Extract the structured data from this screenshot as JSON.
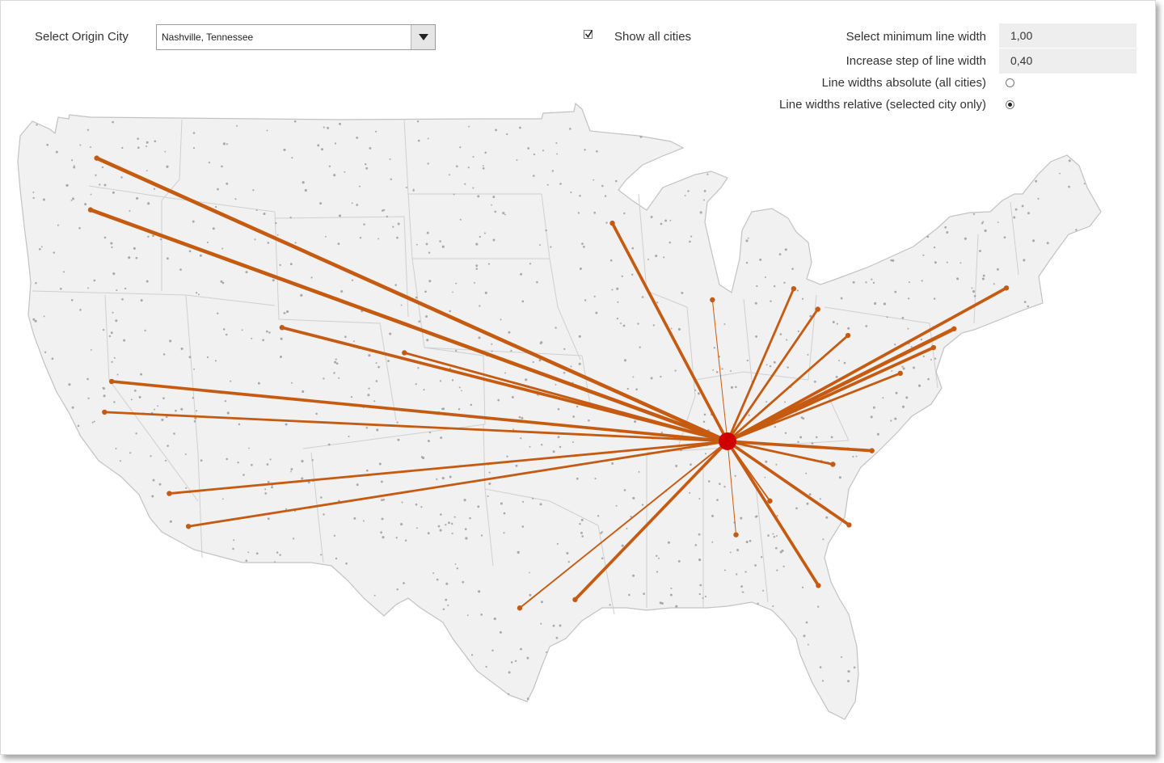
{
  "controls": {
    "origin_label": "Select Origin City",
    "origin_value": "Nashville, Tennessee",
    "show_all_label": "Show all cities",
    "show_all_checked": true,
    "min_width_label": "Select minimum line width",
    "min_width_value": "1,00",
    "step_label": "Increase step of line width",
    "step_value": "0,40",
    "abs_label": "Line widths absolute (all cities)",
    "rel_label": "Line widths relative (selected city only)",
    "selected_mode": "relative"
  },
  "colors": {
    "map_fill": "#f1f1f1",
    "state_border": "#c9c9c9",
    "city_dot": "#a8a8a8",
    "route": "#c55a11",
    "origin": "#d00000"
  },
  "map_data": {
    "origin": {
      "name": "Nashville, Tennessee",
      "lon": -86.78,
      "lat": 36.16
    },
    "routes": [
      {
        "lon": -122.33,
        "lat": 47.61,
        "weight": 5
      },
      {
        "lon": -122.68,
        "lat": 45.52,
        "weight": 5
      },
      {
        "lon": -121.49,
        "lat": 38.58,
        "weight": 4
      },
      {
        "lon": -121.89,
        "lat": 37.34,
        "weight": 3
      },
      {
        "lon": -118.24,
        "lat": 34.05,
        "weight": 3
      },
      {
        "lon": -117.16,
        "lat": 32.72,
        "weight": 3
      },
      {
        "lon": -111.89,
        "lat": 40.76,
        "weight": 4
      },
      {
        "lon": -104.99,
        "lat": 39.74,
        "weight": 3
      },
      {
        "lon": -98.49,
        "lat": 29.42,
        "weight": 2
      },
      {
        "lon": -95.37,
        "lat": 29.76,
        "weight": 4
      },
      {
        "lon": -93.27,
        "lat": 44.98,
        "weight": 4
      },
      {
        "lon": -87.63,
        "lat": 41.88,
        "weight": 1
      },
      {
        "lon": -83.05,
        "lat": 42.33,
        "weight": 3
      },
      {
        "lon": -81.69,
        "lat": 41.5,
        "weight": 3
      },
      {
        "lon": -79.99,
        "lat": 40.44,
        "weight": 3
      },
      {
        "lon": -75.17,
        "lat": 39.95,
        "weight": 4
      },
      {
        "lon": -74.01,
        "lat": 40.71,
        "weight": 5
      },
      {
        "lon": -71.06,
        "lat": 42.36,
        "weight": 4
      },
      {
        "lon": -77.04,
        "lat": 38.91,
        "weight": 3
      },
      {
        "lon": -78.64,
        "lat": 35.78,
        "weight": 4
      },
      {
        "lon": -80.84,
        "lat": 35.23,
        "weight": 3
      },
      {
        "lon": -79.93,
        "lat": 32.78,
        "weight": 4
      },
      {
        "lon": -81.66,
        "lat": 30.33,
        "weight": 4
      },
      {
        "lon": -86.3,
        "lat": 32.38,
        "weight": 1
      },
      {
        "lon": -84.39,
        "lat": 33.75,
        "weight": 2
      }
    ]
  }
}
